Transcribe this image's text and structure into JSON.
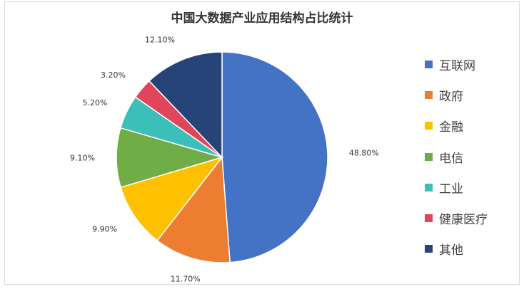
{
  "chart_data": {
    "type": "pie",
    "title": "中国大数据产业应用结构占比统计",
    "categories": [
      "互联网",
      "政府",
      "金融",
      "电信",
      "工业",
      "健康医疗",
      "其他"
    ],
    "values": [
      48.8,
      11.7,
      9.9,
      9.1,
      5.2,
      3.2,
      12.1
    ],
    "value_labels": [
      "48.80%",
      "11.70%",
      "9.90%",
      "9.10%",
      "5.20%",
      "3.20%",
      "12.10%"
    ],
    "colors": [
      "#4472C4",
      "#ED7D31",
      "#FFC000",
      "#70AD47",
      "#3BBFB8",
      "#E0455A",
      "#264478"
    ],
    "legend_position": "right"
  }
}
